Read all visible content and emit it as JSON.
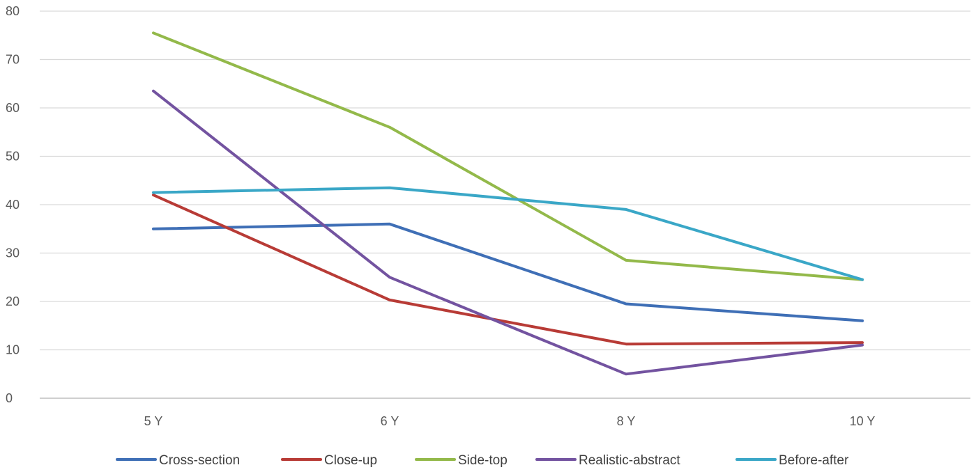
{
  "chart_data": {
    "type": "line",
    "categories": [
      "5 Y",
      "6 Y",
      "8 Y",
      "10 Y"
    ],
    "ylim": [
      0,
      80
    ],
    "yticks": [
      0,
      10,
      20,
      30,
      40,
      50,
      60,
      70,
      80
    ],
    "grid": true,
    "legend_position": "bottom",
    "title": "",
    "xlabel": "",
    "ylabel": "",
    "series": [
      {
        "name": "Cross-section",
        "color": "#3f6fb6",
        "values": [
          35,
          36,
          19.5,
          16
        ]
      },
      {
        "name": "Close-up",
        "color": "#b83b36",
        "values": [
          42,
          20.3,
          11.2,
          11.5
        ]
      },
      {
        "name": "Side-top",
        "color": "#93b94a",
        "values": [
          75.5,
          56,
          28.5,
          24.5
        ]
      },
      {
        "name": "Realistic-abstract",
        "color": "#7353a0",
        "values": [
          63.5,
          25,
          5,
          11
        ]
      },
      {
        "name": "Before-after",
        "color": "#3aa7c7",
        "values": [
          42.5,
          43.5,
          39,
          24.5
        ]
      }
    ]
  }
}
